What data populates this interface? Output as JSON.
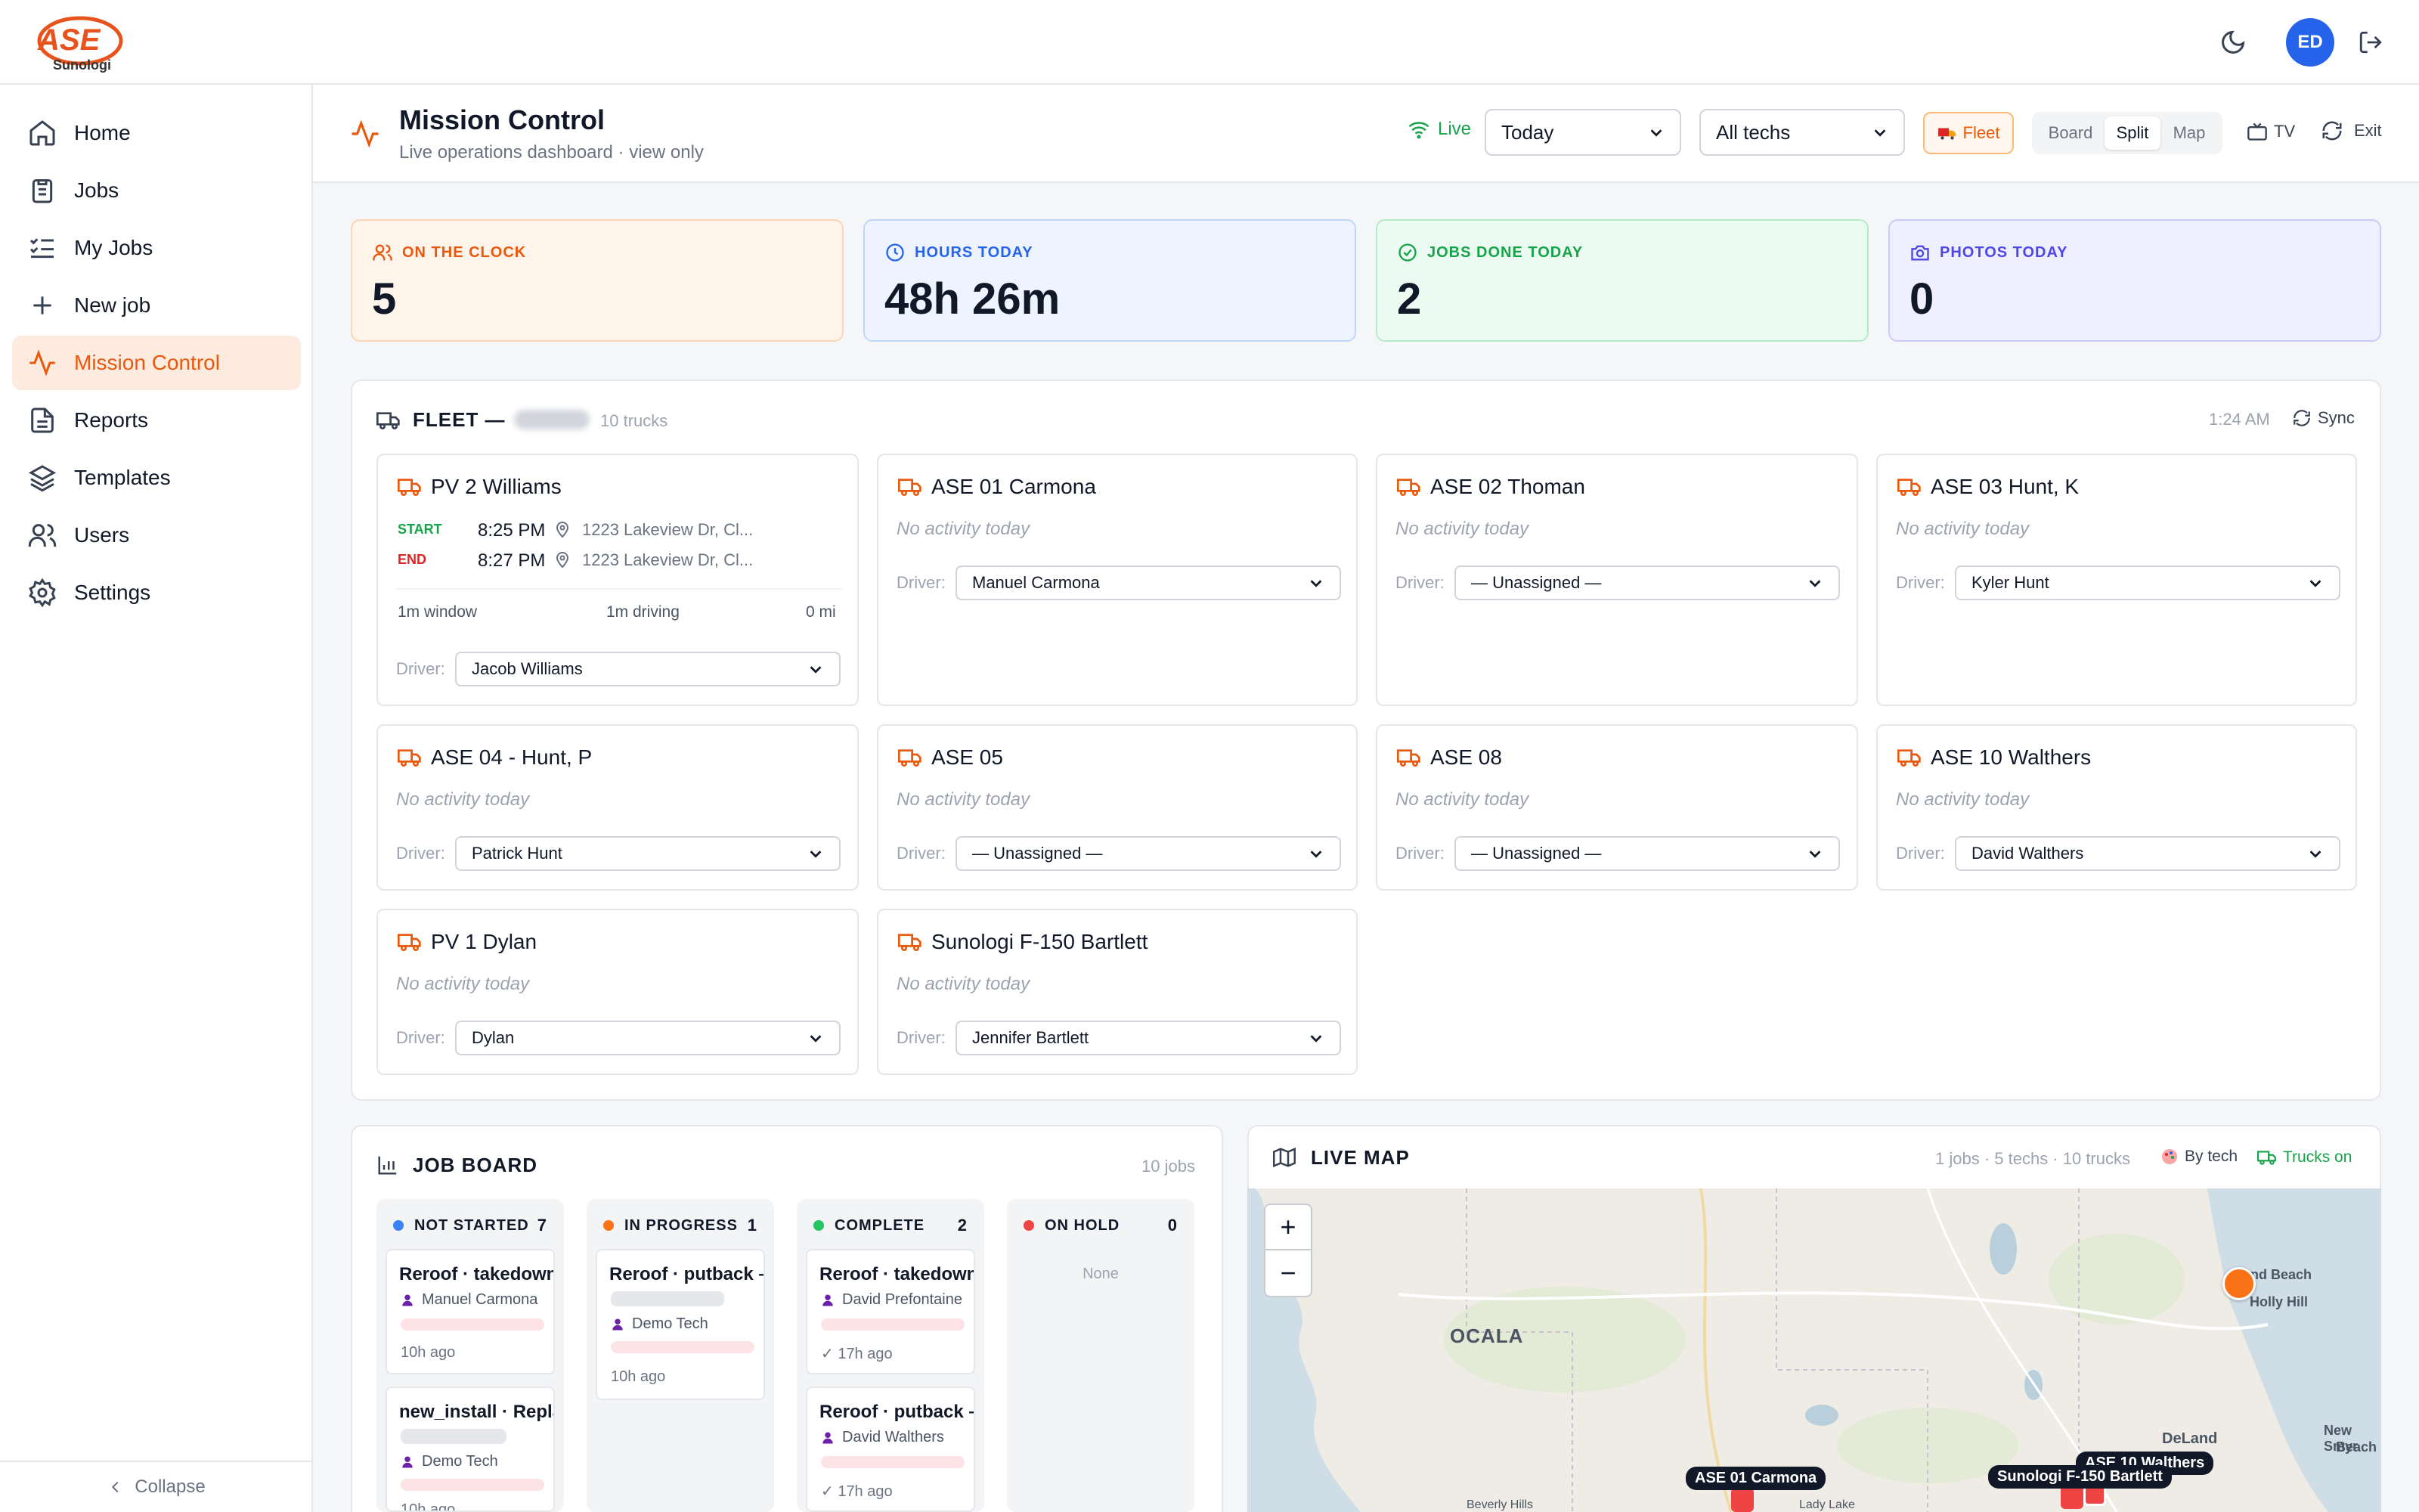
{
  "topbar": {
    "avatar_initials": "ED",
    "icons": [
      "moon-icon",
      "logout-icon"
    ]
  },
  "sidebar": {
    "items": [
      {
        "label": "Home",
        "icon": "home-icon"
      },
      {
        "label": "Jobs",
        "icon": "clipboard-icon"
      },
      {
        "label": "My Jobs",
        "icon": "checklist-icon"
      },
      {
        "label": "New job",
        "icon": "plus-icon"
      },
      {
        "label": "Mission Control",
        "icon": "activity-icon",
        "active": true
      },
      {
        "label": "Reports",
        "icon": "document-icon"
      },
      {
        "label": "Templates",
        "icon": "layers-icon"
      },
      {
        "label": "Users",
        "icon": "users-icon"
      },
      {
        "label": "Settings",
        "icon": "gear-icon"
      }
    ],
    "collapse_label": "Collapse"
  },
  "header": {
    "title": "Mission Control",
    "subtitle": "Live operations dashboard · view only",
    "live_label": "Live",
    "date_select": "Today",
    "tech_select": "All techs",
    "fleet_label": "Fleet",
    "view_tabs": [
      "Board",
      "Split",
      "Map"
    ],
    "active_view": "Split",
    "tv_label": "TV",
    "exit_label": "Exit"
  },
  "kpis": [
    {
      "label": "ON THE CLOCK",
      "value": "5",
      "color": "#ea580c"
    },
    {
      "label": "HOURS TODAY",
      "value": "48h 26m",
      "color": "#2563eb"
    },
    {
      "label": "JOBS DONE TODAY",
      "value": "2",
      "color": "#16a34a"
    },
    {
      "label": "PHOTOS TODAY",
      "value": "0",
      "color": "#4f46e5"
    }
  ],
  "fleet": {
    "title": "FLEET —",
    "count": "10 trucks",
    "time": "1:24 AM",
    "sync_label": "Sync",
    "driver_label": "Driver:",
    "no_activity": "No activity today",
    "trucks": [
      {
        "name": "PV 2 Williams",
        "driver": "Jacob Williams",
        "start_label": "START",
        "start_time": "8:25 PM",
        "start_loc": "1223 Lakeview Dr, Cl...",
        "end_label": "END",
        "end_time": "8:27 PM",
        "end_loc": "1223 Lakeview Dr, Cl...",
        "window": "1m window",
        "driving": "1m driving",
        "distance": "0 mi"
      },
      {
        "name": "ASE 01 Carmona",
        "driver": "Manuel Carmona"
      },
      {
        "name": "ASE 02 Thoman",
        "driver": "— Unassigned —"
      },
      {
        "name": "ASE 03 Hunt, K",
        "driver": "Kyler Hunt"
      },
      {
        "name": "ASE 04 - Hunt, P",
        "driver": "Patrick Hunt"
      },
      {
        "name": "ASE 05",
        "driver": "— Unassigned —"
      },
      {
        "name": "ASE 08",
        "driver": "— Unassigned —"
      },
      {
        "name": "ASE 10 Walthers",
        "driver": "David Walthers"
      },
      {
        "name": "PV 1 Dylan",
        "driver": "Dylan"
      },
      {
        "name": "Sunologi F-150 Bartlett",
        "driver": "Jennifer Bartlett"
      }
    ]
  },
  "jobboard": {
    "title": "JOB BOARD",
    "count": "10 jobs",
    "columns": [
      {
        "label": "NOT STARTED",
        "count": "7",
        "color": "#3b82f6",
        "cards": [
          {
            "title": "Reroof · takedown",
            "person": "Manuel Carmona",
            "age": "10h ago"
          },
          {
            "title": "new_install · Repla",
            "person": "Demo Tech",
            "age": "10h ago"
          }
        ]
      },
      {
        "label": "IN PROGRESS",
        "count": "1",
        "color": "#f97316",
        "cards": [
          {
            "title": "Reroof · putback –",
            "person": "Demo Tech",
            "age": "10h ago"
          }
        ]
      },
      {
        "label": "COMPLETE",
        "count": "2",
        "color": "#22c55e",
        "cards": [
          {
            "title": "Reroof · takedown",
            "person": "David Prefontaine",
            "age": "✓ 17h ago"
          },
          {
            "title": "Reroof · putback –",
            "person": "David Walthers",
            "age": "✓ 17h ago"
          }
        ]
      },
      {
        "label": "ON HOLD",
        "count": "0",
        "color": "#ef4444",
        "empty": "None",
        "cards": []
      }
    ]
  },
  "livemap": {
    "title": "LIVE MAP",
    "stats": "1 jobs · 5 techs · 10 trucks",
    "by_tech": "By tech",
    "trucks_on": "Trucks on",
    "zoom_in": "+",
    "zoom_out": "−",
    "places": [
      "OCALA",
      "mond Beach",
      "Holly Hill",
      "DeLand",
      "New Smyr",
      "Beach",
      "Beverly Hills",
      "Lady Lake"
    ],
    "markers": [
      "ASE 01 Carmona",
      "ASE 10 Walthers",
      "Sunologi F-150 Bartlett"
    ]
  }
}
